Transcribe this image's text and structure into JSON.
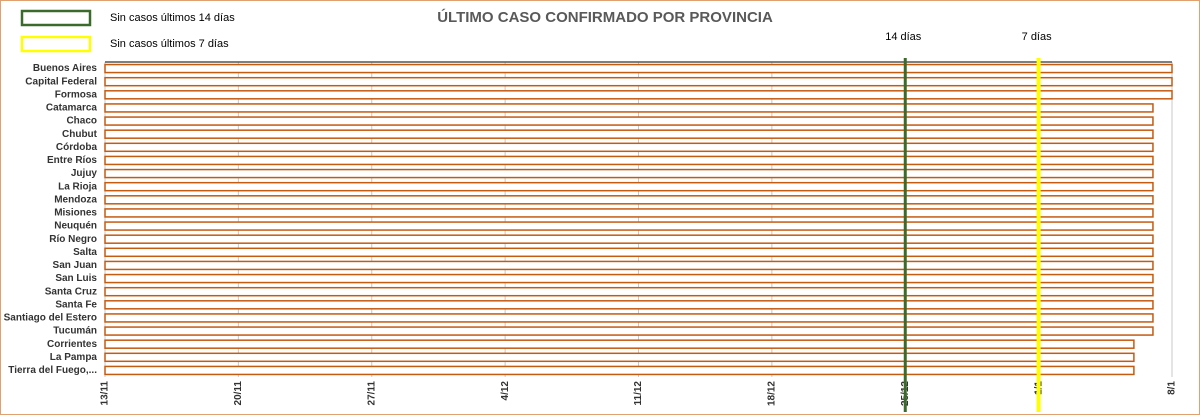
{
  "chart_data": {
    "type": "gantt",
    "title": "ÚLTIMO CASO CONFIRMADO POR PROVINCIA",
    "categories": [
      "Buenos Aires",
      "Capital Federal",
      "Formosa",
      "Catamarca",
      "Chaco",
      "Chubut",
      "Córdoba",
      "Entre Ríos",
      "Jujuy",
      "La Rioja",
      "Mendoza",
      "Misiones",
      "Neuquén",
      "Río Negro",
      "Salta",
      "San Juan",
      "San Luis",
      "Santa Cruz",
      "Santa Fe",
      "Santiago del Estero",
      "Tucumán",
      "Corrientes",
      "La Pampa",
      "Tierra del Fuego,..."
    ],
    "values": [
      56,
      56,
      56,
      55,
      55,
      55,
      55,
      55,
      55,
      55,
      55,
      55,
      55,
      55,
      55,
      55,
      55,
      55,
      55,
      55,
      55,
      54,
      54,
      54
    ],
    "color": "#c55a11",
    "xlim": [
      0,
      56
    ],
    "xticks": [
      {
        "value": 0,
        "label": "13/11"
      },
      {
        "value": 7,
        "label": "20/11"
      },
      {
        "value": 14,
        "label": "27/11"
      },
      {
        "value": 21,
        "label": "4/12"
      },
      {
        "value": 28,
        "label": "11/12"
      },
      {
        "value": 35,
        "label": "18/12"
      },
      {
        "value": 42,
        "label": "25/12"
      },
      {
        "value": 49,
        "label": "1/1"
      },
      {
        "value": 56,
        "label": "8/1"
      }
    ],
    "grid": true,
    "reference_lines": [
      {
        "name": "14 días",
        "value": 42,
        "color": "#3a6b2a"
      },
      {
        "name": "7 días",
        "value": 49,
        "color": "#ffff00"
      }
    ],
    "legend": [
      {
        "name": "Sin casos últimos 14 días",
        "color": "#3a6b2a"
      },
      {
        "name": "Sin casos últimos 7 días",
        "color": "#ffff00"
      }
    ]
  }
}
